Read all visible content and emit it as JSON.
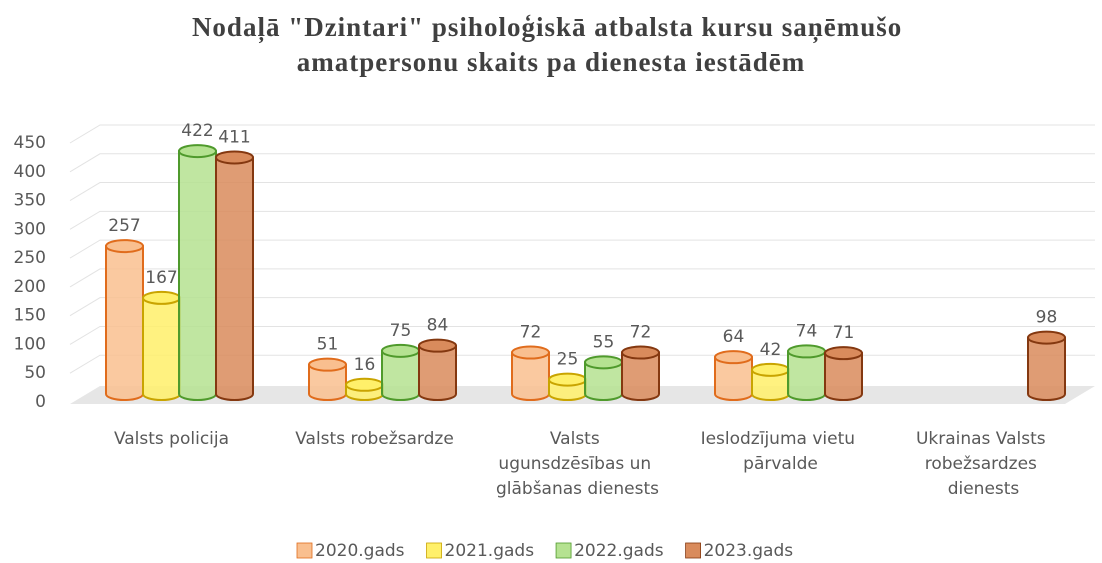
{
  "chart_data": {
    "type": "bar3d",
    "title": "Nodaļā \"Dzintari\" psiholoģiskā atbalsta kursu saņēmušo amatpersonu skaits pa dienesta iestādēm",
    "categories": [
      "Valsts policija",
      "Valsts robežsardze",
      "Valsts ugunsdzēsības un glābšanas dienests",
      "Ieslodzījuma vietu pārvalde",
      "Ukrainas Valsts robežsardzes dienests"
    ],
    "series": [
      {
        "name": "2020.gads",
        "color": "#f9bf8f",
        "edge": "#e06c1c",
        "values": [
          257,
          51,
          72,
          64,
          null
        ]
      },
      {
        "name": "2021.gads",
        "color": "#fff06a",
        "edge": "#c9a400",
        "values": [
          167,
          16,
          25,
          42,
          null
        ]
      },
      {
        "name": "2022.gads",
        "color": "#b5e291",
        "edge": "#4f9a2c",
        "values": [
          422,
          75,
          55,
          74,
          null
        ]
      },
      {
        "name": "2023.gads",
        "color": "#d98b5c",
        "edge": "#843810",
        "values": [
          411,
          84,
          72,
          71,
          98
        ]
      }
    ],
    "ylim": [
      0,
      450
    ],
    "yticks": [
      0,
      50,
      100,
      150,
      200,
      250,
      300,
      350,
      400,
      450
    ],
    "grid": true,
    "legend": "bottom"
  }
}
